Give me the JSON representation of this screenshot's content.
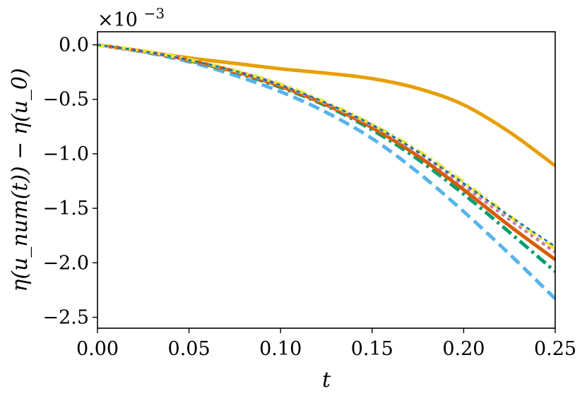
{
  "chart_data": {
    "type": "line",
    "title": "",
    "xlabel": "t",
    "ylabel": "η(u_num(t)) − η(u_0)",
    "offset_label": "×10−3",
    "xlim": [
      0.0,
      0.25
    ],
    "ylim": [
      -2.6,
      0.12
    ],
    "x_ticks": [
      "0.00",
      "0.05",
      "0.10",
      "0.15",
      "0.20",
      "0.25"
    ],
    "y_ticks": [
      "0.0",
      "−0.5",
      "−1.0",
      "−1.5",
      "−2.0",
      "−2.5"
    ],
    "grid": false,
    "legend": "none",
    "x": [
      0.0,
      0.025,
      0.05,
      0.075,
      0.1,
      0.125,
      0.15,
      0.175,
      0.2,
      0.225,
      0.25
    ],
    "series": [
      {
        "color": "#e69f00",
        "dash": "solid",
        "width": 5,
        "values": [
          0.0,
          -0.06,
          -0.12,
          -0.17,
          -0.22,
          -0.26,
          -0.31,
          -0.4,
          -0.55,
          -0.8,
          -1.11
        ]
      },
      {
        "color": "#56b4e9",
        "dash": "dashed",
        "width": 5,
        "values": [
          0.0,
          -0.065,
          -0.155,
          -0.28,
          -0.43,
          -0.62,
          -0.86,
          -1.17,
          -1.53,
          -1.92,
          -2.33
        ]
      },
      {
        "color": "#009e73",
        "dash": "dashdot",
        "width": 5,
        "values": [
          0.0,
          -0.06,
          -0.145,
          -0.25,
          -0.39,
          -0.56,
          -0.78,
          -1.05,
          -1.37,
          -1.72,
          -2.08
        ]
      },
      {
        "color": "#d55e00",
        "dash": "solid",
        "width": 5,
        "values": [
          0.0,
          -0.06,
          -0.14,
          -0.245,
          -0.38,
          -0.55,
          -0.76,
          -1.02,
          -1.33,
          -1.66,
          -1.97
        ]
      },
      {
        "color": "#cc79a7",
        "dash": "dotted",
        "width": 5,
        "values": [
          0.0,
          -0.06,
          -0.14,
          -0.24,
          -0.37,
          -0.54,
          -0.74,
          -0.99,
          -1.29,
          -1.6,
          -1.9
        ]
      },
      {
        "color": "#f0e442",
        "dash": "dashdot",
        "width": 5,
        "values": [
          0.0,
          -0.055,
          -0.135,
          -0.235,
          -0.36,
          -0.53,
          -0.73,
          -0.97,
          -1.26,
          -1.57,
          -1.87
        ]
      },
      {
        "color": "#0072b2",
        "dash": "dotted",
        "width": 2.5,
        "values": [
          0.0,
          -0.06,
          -0.14,
          -0.24,
          -0.37,
          -0.535,
          -0.735,
          -0.98,
          -1.27,
          -1.57,
          -1.85
        ]
      }
    ]
  }
}
